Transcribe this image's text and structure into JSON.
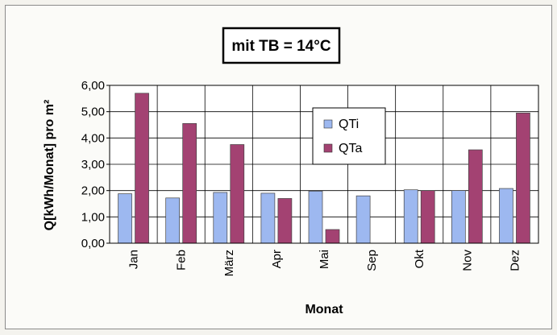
{
  "chart_data": {
    "type": "bar",
    "title": "mit TB = 14°C",
    "xlabel": "Monat",
    "ylabel": "Q[kWh/Monat] pro m²",
    "categories": [
      "Jan",
      "Feb",
      "März",
      "Apr",
      "Mai",
      "Sep",
      "Okt",
      "Nov",
      "Dez"
    ],
    "series": [
      {
        "name": "QTi",
        "color": "#9db8f0",
        "values": [
          1.88,
          1.72,
          1.93,
          1.9,
          1.98,
          1.8,
          2.03,
          2.0,
          2.08
        ]
      },
      {
        "name": "QTa",
        "color": "#a34272",
        "values": [
          5.7,
          4.55,
          3.75,
          1.7,
          0.52,
          0.0,
          2.0,
          3.55,
          4.95
        ]
      }
    ],
    "ylim": [
      0,
      6
    ],
    "yticks": [
      "0,00",
      "1,00",
      "2,00",
      "3,00",
      "4,00",
      "5,00",
      "6,00"
    ],
    "grid": true,
    "legend_position": "top-center"
  }
}
